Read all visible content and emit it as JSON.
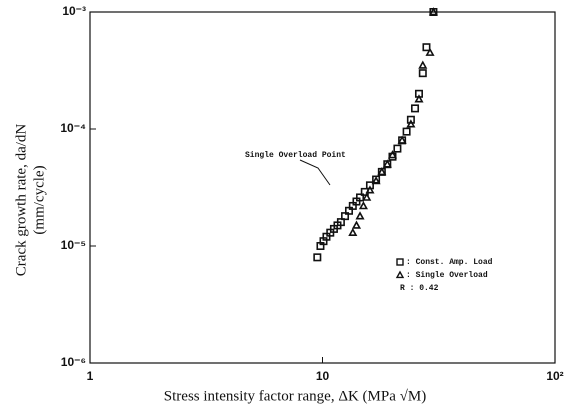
{
  "chart_data": {
    "type": "scatter",
    "xlabel": "Stress intensity factor range, ΔK (MPa √M)",
    "ylabel_lines": [
      "Crack growth rate, da/dN",
      "(mm/cycle)"
    ],
    "annotation": "Single Overload Point",
    "legend_note": "R : 0.42",
    "xlog": true,
    "ylog": true,
    "xlim": [
      1,
      100
    ],
    "ylim": [
      1e-06,
      0.001
    ],
    "xticks": [
      1,
      10,
      {
        "value": 100,
        "label": "10²"
      }
    ],
    "yticks": [
      {
        "value": 1e-06,
        "label": "10⁻⁶"
      },
      {
        "value": 1e-05,
        "label": "10⁻⁵"
      },
      {
        "value": 0.0001,
        "label": "10⁻⁴"
      },
      {
        "value": 0.001,
        "label": "10⁻³"
      }
    ],
    "series": [
      {
        "name": ": Const. Amp. Load",
        "marker": "square",
        "color": "#111111",
        "x": [
          9.5,
          9.8,
          10.1,
          10.4,
          10.8,
          11.2,
          11.6,
          12,
          12.5,
          13,
          13.5,
          14,
          14.5,
          15.2,
          16,
          17,
          18,
          19,
          20,
          21,
          22,
          23,
          24,
          25,
          26,
          27,
          28,
          30
        ],
        "values": [
          8e-06,
          1e-05,
          1.1e-05,
          1.2e-05,
          1.3e-05,
          1.4e-05,
          1.5e-05,
          1.6e-05,
          1.8e-05,
          2e-05,
          2.2e-05,
          2.4e-05,
          2.6e-05,
          2.9e-05,
          3.3e-05,
          3.7e-05,
          4.3e-05,
          5e-05,
          5.8e-05,
          6.8e-05,
          8e-05,
          9.5e-05,
          0.00012,
          0.00015,
          0.0002,
          0.0003,
          0.0005,
          0.001
        ]
      },
      {
        "name": ": Single Overload",
        "marker": "triangle",
        "color": "#111111",
        "x": [
          13.5,
          14,
          14.5,
          15,
          15.5,
          16,
          17,
          18,
          19,
          20,
          22,
          24,
          26,
          27,
          29,
          30
        ],
        "values": [
          1.3e-05,
          1.5e-05,
          1.8e-05,
          2.2e-05,
          2.6e-05,
          3e-05,
          3.6e-05,
          4.3e-05,
          5e-05,
          6e-05,
          8e-05,
          0.00011,
          0.00018,
          0.00035,
          0.00045,
          0.001
        ]
      }
    ]
  }
}
